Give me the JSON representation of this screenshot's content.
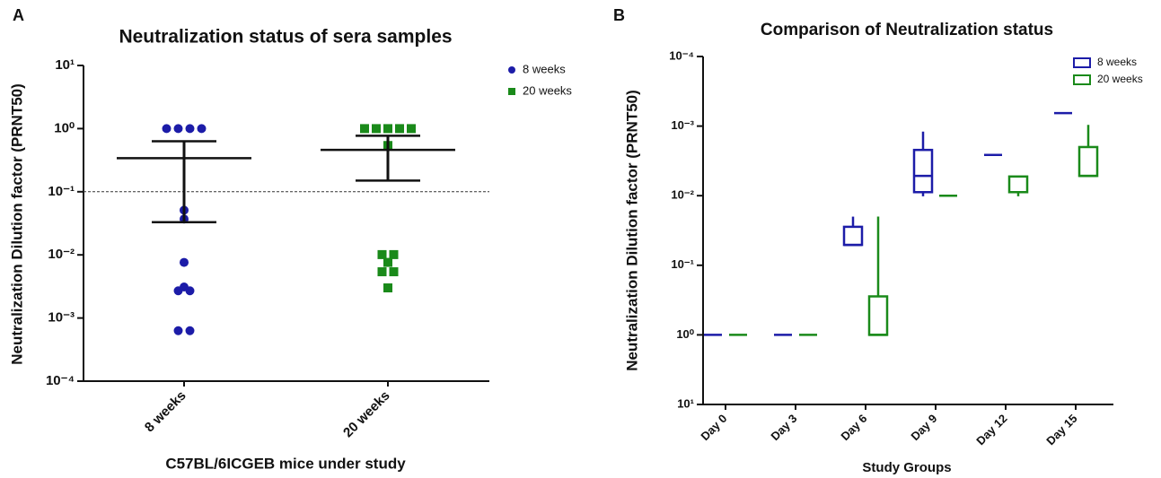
{
  "chart_data": [
    {
      "type": "scatter",
      "panel_label": "A",
      "title": "Neutralization status of sera samples",
      "xlabel": "C57BL/6ICGEB mice under study",
      "ylabel": "Neutralization Dilution factor (PRNT50)",
      "log_y": true,
      "ylim": [
        0.0001,
        10
      ],
      "yticks": [
        {
          "value": 0.0001,
          "label": "10⁻⁴"
        },
        {
          "value": 0.001,
          "label": "10⁻³"
        },
        {
          "value": 0.01,
          "label": "10⁻²"
        },
        {
          "value": 0.1,
          "label": "10⁻¹"
        },
        {
          "value": 1,
          "label": "10⁰"
        },
        {
          "value": 10,
          "label": "10¹"
        }
      ],
      "reference_line": 0.1,
      "legend": "upper right",
      "categories": [
        "8 weeks",
        "20 weeks"
      ],
      "series": [
        {
          "name": "8 weeks",
          "color": "#1c1ca8",
          "marker": "circle",
          "values": [
            1,
            1,
            1,
            1,
            0.051,
            0.037,
            0.0076,
            0.0027,
            0.0027,
            0.0031,
            0.00063,
            0.00063
          ],
          "mean": 0.34,
          "error_bar": [
            0.033,
            0.63
          ]
        },
        {
          "name": "20 weeks",
          "color": "#1a8a1a",
          "marker": "square",
          "values": [
            1,
            1,
            1,
            1,
            1,
            0.54,
            0.0101,
            0.0101,
            0.0076,
            0.0054,
            0.0054,
            0.003
          ],
          "mean": 0.46,
          "error_bar": [
            0.15,
            0.77
          ]
        }
      ]
    },
    {
      "type": "box",
      "panel_label": "B",
      "title": "Comparison of Neutralization status",
      "xlabel": "Study Groups",
      "ylabel": "Neutralization Dilution factor (PRNT50)",
      "log_y": true,
      "ylim": [
        10,
        0.0001
      ],
      "yticks": [
        {
          "value": 10,
          "label": "10¹"
        },
        {
          "value": 1,
          "label": "10⁰"
        },
        {
          "value": 0.1,
          "label": "10⁻¹"
        },
        {
          "value": 0.01,
          "label": "10⁻²"
        },
        {
          "value": 0.001,
          "label": "10⁻³"
        },
        {
          "value": 0.0001,
          "label": "10⁻⁴"
        }
      ],
      "legend": "upper right",
      "categories": [
        "Day 0",
        "Day 3",
        "Day 6",
        "Day 9",
        "Day 12",
        "Day 15"
      ],
      "series": [
        {
          "name": "8 weeks",
          "color": "#1c1ca8",
          "values": [
            [
              1,
              1,
              1,
              1,
              1
            ],
            [
              1,
              1,
              1,
              1,
              1
            ],
            [
              0.02,
              0.028,
              0.051,
              0.051,
              0.051
            ],
            [
              0.0012,
              0.0022,
              0.0052,
              0.0089,
              0.0102
            ],
            [
              0.0026,
              0.0026,
              0.0026,
              0.0026,
              0.0026
            ],
            [
              0.00065,
              0.00065,
              0.00065,
              0.00065,
              0.00065
            ]
          ]
        },
        {
          "name": "20 weeks",
          "color": "#1a8a1a",
          "values": [
            [
              1,
              1,
              1,
              1,
              1
            ],
            [
              1,
              1,
              1,
              1,
              1
            ],
            [
              0.02,
              0.28,
              1,
              1,
              1
            ],
            [
              0.01,
              0.01,
              0.01,
              0.01,
              0.01
            ],
            [
              0.0053,
              0.0053,
              0.0089,
              0.0089,
              0.0102
            ],
            [
              0.00096,
              0.002,
              0.0052,
              0.0052,
              0.0052
            ]
          ]
        }
      ]
    }
  ]
}
